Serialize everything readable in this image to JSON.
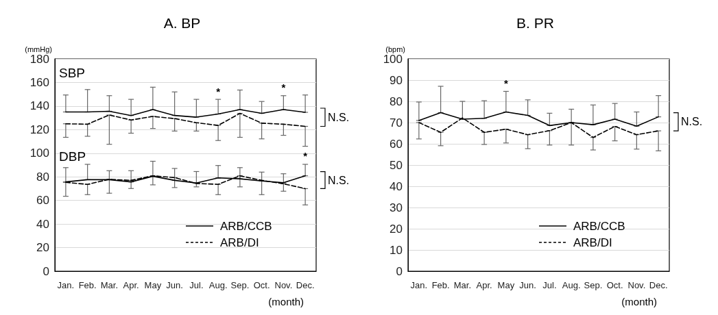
{
  "chart_data": [
    {
      "type": "line",
      "title": "A. BP",
      "xlabel": "(month)",
      "ylabel": "(mmHg)",
      "categories": [
        "Jan.",
        "Feb.",
        "Mar.",
        "Apr.",
        "May",
        "Jun.",
        "Jul.",
        "Aug.",
        "Sep.",
        "Oct.",
        "Nov.",
        "Dec."
      ],
      "series": [
        {
          "name": "ARB/CCB",
          "color": "#000000",
          "line_style": "solid",
          "values": [
            135,
            135,
            135.6,
            132,
            137,
            132,
            130.6,
            133.3,
            137,
            133.8,
            137,
            134.7
          ],
          "errors": [
            [
              135,
              149.4
            ],
            [
              135,
              154
            ],
            [
              135.6,
              148.8
            ],
            [
              132,
              145.7
            ],
            [
              137,
              156
            ],
            [
              132,
              152
            ],
            [
              130.6,
              145.7
            ],
            [
              133.3,
              145.7
            ],
            [
              137,
              153.6
            ],
            [
              133.8,
              143.9
            ],
            [
              137,
              148.8
            ],
            [
              134.7,
              149.4
            ]
          ]
        },
        {
          "name": "ARB/DI",
          "color": "#000000",
          "line_style": "dashed",
          "values": [
            125,
            124.6,
            132.4,
            128.2,
            131.2,
            129.4,
            125.9,
            123.6,
            133.8,
            125.5,
            124.6,
            122.8
          ],
          "errors": [
            [
              113.5,
              125
            ],
            [
              114.4,
              124.6
            ],
            [
              107.6,
              132.4
            ],
            [
              117,
              128.2
            ],
            [
              121,
              131.2
            ],
            [
              118.8,
              129.4
            ],
            [
              118.8,
              125.9
            ],
            [
              110.8,
              123.6
            ],
            [
              113.5,
              133.8
            ],
            [
              112.2,
              125.5
            ],
            [
              115.2,
              124.6
            ],
            [
              105.9,
              122.8
            ]
          ]
        },
        {
          "color": "#000000",
          "line_style": "solid",
          "values": [
            75.7,
            77.6,
            77.6,
            75.7,
            80.5,
            77,
            74.8,
            79.1,
            78.3,
            76.5,
            75,
            80.9
          ],
          "errors": [
            [
              75.7,
              87.8
            ],
            [
              77.6,
              90.6
            ],
            [
              77.6,
              85.2
            ],
            [
              75.7,
              85.2
            ],
            [
              80.5,
              93.2
            ],
            [
              77,
              87.1
            ],
            [
              74.8,
              84.5
            ],
            [
              79.1,
              89.6
            ],
            [
              78.3,
              87.8
            ],
            [
              76.5,
              84
            ],
            [
              75,
              82.6
            ],
            [
              80.9,
              90.6
            ]
          ]
        },
        {
          "color": "#000000",
          "line_style": "dashed",
          "values": [
            75.3,
            73.6,
            77.9,
            77,
            80.9,
            79.3,
            74.4,
            73.6,
            80.9,
            77,
            74.1,
            70
          ],
          "errors": [
            [
              63.5,
              75.3
            ],
            [
              64.9,
              73.6
            ],
            [
              66.1,
              77.9
            ],
            [
              70.1,
              77
            ],
            [
              73.2,
              80.9
            ],
            [
              70.9,
              79.3
            ],
            [
              71.5,
              74.4
            ],
            [
              64.9,
              73.6
            ],
            [
              71.5,
              80.9
            ],
            [
              64.9,
              77
            ],
            [
              67.8,
              74.1
            ],
            [
              56.2,
              70
            ]
          ]
        }
      ],
      "ylim": [
        0,
        180
      ],
      "yticks": [
        0,
        20,
        40,
        60,
        80,
        100,
        120,
        140,
        160,
        180
      ],
      "grid": "y",
      "legend": "bottom right",
      "marker": "none",
      "annotations": [
        "SBP",
        "DBP",
        "*",
        "*",
        "*",
        "N.S.",
        "N.S."
      ]
    },
    {
      "type": "line",
      "title": "B. PR",
      "xlabel": "(month)",
      "ylabel": "(bpm)",
      "categories": [
        "Jan.",
        "Feb.",
        "Mar.",
        "Apr.",
        "May",
        "Jun.",
        "Jul.",
        "Aug.",
        "Sep.",
        "Oct.",
        "Nov.",
        "Dec."
      ],
      "series": [
        {
          "name": "ARB/CCB",
          "color": "#000000",
          "line_style": "solid",
          "values": [
            71,
            74.7,
            71.6,
            72,
            75,
            73.4,
            68.6,
            70,
            69,
            71.6,
            68.3,
            72.7
          ],
          "errors": [
            [
              71,
              79.7
            ],
            [
              74.7,
              87.1
            ],
            [
              71.6,
              80
            ],
            [
              72,
              80.3
            ],
            [
              75,
              84.7
            ],
            [
              73.4,
              80.7
            ],
            [
              68.6,
              74.4
            ],
            [
              70,
              76.3
            ],
            [
              69,
              78.3
            ],
            [
              71.6,
              79
            ],
            [
              68.3,
              75
            ],
            [
              72.7,
              82.7
            ]
          ]
        },
        {
          "name": "ARB/DI",
          "color": "#000000",
          "line_style": "dashed",
          "values": [
            70,
            65.4,
            72.2,
            65.4,
            66.9,
            64.3,
            66.2,
            70,
            63,
            68.2,
            64.3,
            66.1
          ],
          "errors": [
            [
              62.3,
              70
            ],
            [
              59.1,
              65.4
            ],
            null,
            [
              59.7,
              65.4
            ],
            [
              60.4,
              66.9
            ],
            [
              57.7,
              64.3
            ],
            [
              59.4,
              66.2
            ],
            [
              59.4,
              70
            ],
            [
              57.1,
              63
            ],
            [
              61.4,
              68.2
            ],
            [
              57.5,
              64.3
            ],
            [
              56.7,
              66.1
            ]
          ]
        }
      ],
      "ylim": [
        0,
        100
      ],
      "yticks": [
        0,
        10,
        20,
        30,
        40,
        50,
        60,
        70,
        80,
        90,
        100
      ],
      "grid": "y",
      "legend": "bottom right",
      "marker": "none",
      "annotations": [
        "*",
        "N.S."
      ]
    }
  ]
}
